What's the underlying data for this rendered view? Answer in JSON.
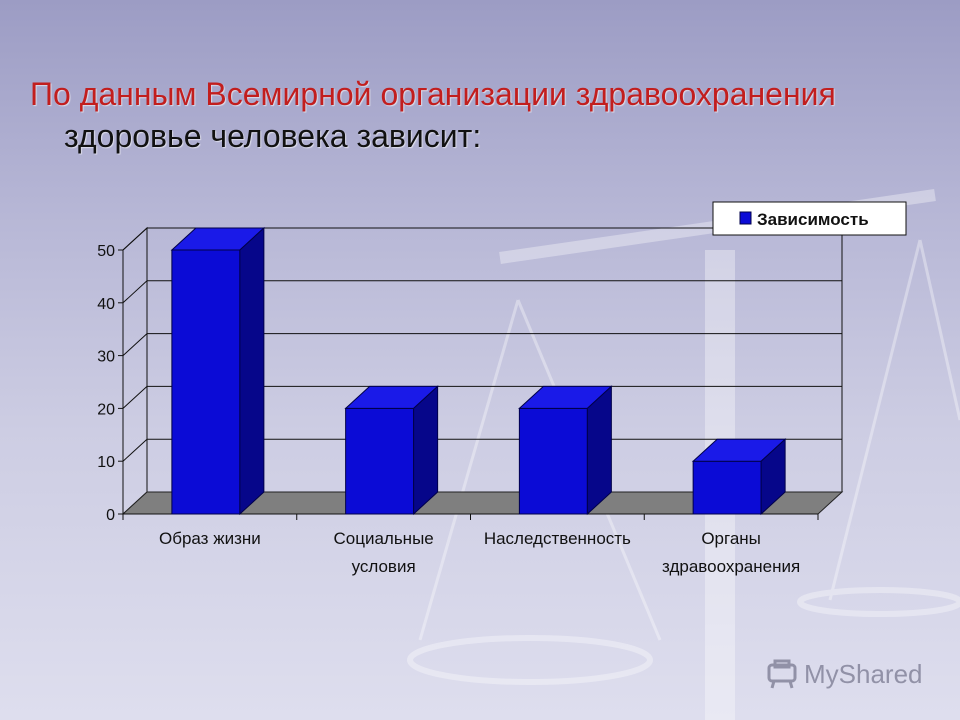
{
  "slide": {
    "title_line1": "По данным Всемирной организации здравоохранения",
    "title_line2": "здоровье человека зависит:",
    "title_color": "#c21e1e"
  },
  "watermark": {
    "text": "MyShared"
  },
  "chart_data": {
    "type": "bar",
    "categories": [
      [
        "Образ жизни"
      ],
      [
        "Социальные",
        "условия"
      ],
      [
        "Наследственность"
      ],
      [
        "Органы",
        "здравоохранения"
      ]
    ],
    "series": [
      {
        "name": "Зависимость",
        "values": [
          50,
          20,
          20,
          10
        ],
        "color": "#0b0bd6"
      }
    ],
    "y_ticks": [
      0,
      10,
      20,
      30,
      40,
      50
    ],
    "ylim": [
      0,
      50
    ],
    "grid": true,
    "legend_position": "top-right",
    "style": "3d"
  }
}
